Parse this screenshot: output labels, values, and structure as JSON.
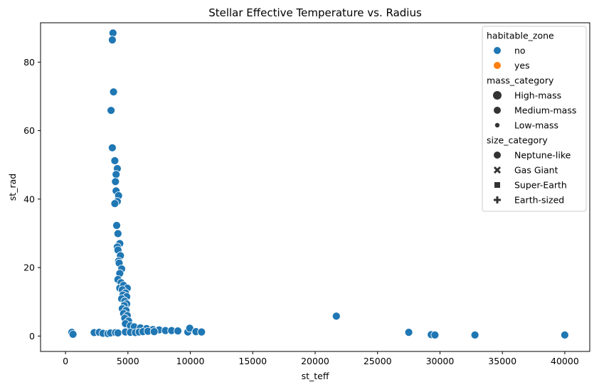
{
  "chart_data": {
    "type": "scatter",
    "title": "Stellar Effective Temperature vs. Radius",
    "xlabel": "st_teff",
    "ylabel": "st_rad",
    "xlim": [
      -2000,
      42000
    ],
    "ylim": [
      -4.5,
      91.5
    ],
    "xticks": [
      "0",
      "5000",
      "10000",
      "15000",
      "20000",
      "25000",
      "30000",
      "35000",
      "40000"
    ],
    "yticks": [
      "0",
      "20",
      "40",
      "60",
      "80"
    ],
    "grid": false,
    "colors": {
      "no": "#1f77b4",
      "yes": "#ff7f0e"
    },
    "legend": {
      "placement": "top-right",
      "sections": [
        {
          "title": "habitable_zone",
          "entries": [
            {
              "label": "no",
              "marker": "circle",
              "color": "#1f77b4",
              "size": "medium"
            },
            {
              "label": "yes",
              "marker": "circle",
              "color": "#ff7f0e",
              "size": "medium"
            }
          ]
        },
        {
          "title": "mass_category",
          "entries": [
            {
              "label": "High-mass",
              "marker": "circle",
              "color": "#333333",
              "size": "large"
            },
            {
              "label": "Medium-mass",
              "marker": "circle",
              "color": "#333333",
              "size": "medium"
            },
            {
              "label": "Low-mass",
              "marker": "circle",
              "color": "#333333",
              "size": "small"
            }
          ]
        },
        {
          "title": "size_category",
          "entries": [
            {
              "label": "Neptune-like",
              "marker": "circle",
              "color": "#333333",
              "size": "medium"
            },
            {
              "label": "Gas Giant",
              "marker": "x",
              "color": "#333333",
              "size": "medium"
            },
            {
              "label": "Super-Earth",
              "marker": "square",
              "color": "#333333",
              "size": "medium"
            },
            {
              "label": "Earth-sized",
              "marker": "plus",
              "color": "#333333",
              "size": "medium"
            }
          ]
        }
      ]
    },
    "series": [
      {
        "habitable_zone": "no",
        "points": [
          [
            3800,
            88.5
          ],
          [
            3750,
            86.5
          ],
          [
            3850,
            71.3
          ],
          [
            3650,
            65.9
          ],
          [
            3750,
            55.0
          ],
          [
            3950,
            51.2
          ],
          [
            4150,
            48.9
          ],
          [
            4050,
            47.2
          ],
          [
            4000,
            45.1
          ],
          [
            4050,
            42.4
          ],
          [
            4250,
            41.0
          ],
          [
            4150,
            39.3
          ],
          [
            3950,
            38.7
          ],
          [
            4100,
            32.3
          ],
          [
            4200,
            29.9
          ],
          [
            4350,
            27.0
          ],
          [
            4150,
            26.0
          ],
          [
            4200,
            25.1
          ],
          [
            4400,
            23.5
          ],
          [
            4250,
            21.9
          ],
          [
            4300,
            21.3
          ],
          [
            4500,
            19.6
          ],
          [
            4350,
            18.3
          ],
          [
            4200,
            16.5
          ],
          [
            4450,
            15.6
          ],
          [
            4350,
            14.0
          ],
          [
            4650,
            14.8
          ],
          [
            4950,
            14.0
          ],
          [
            4550,
            13.5
          ],
          [
            4800,
            12.6
          ],
          [
            4600,
            12.0
          ],
          [
            4900,
            11.5
          ],
          [
            4500,
            10.9
          ],
          [
            4750,
            10.2
          ],
          [
            4900,
            9.4
          ],
          [
            4700,
            8.9
          ],
          [
            4550,
            8.0
          ],
          [
            4850,
            7.5
          ],
          [
            4650,
            6.6
          ],
          [
            4950,
            6.0
          ],
          [
            4750,
            5.2
          ],
          [
            5050,
            4.4
          ],
          [
            4800,
            3.6
          ],
          [
            5200,
            3.0
          ],
          [
            5500,
            2.7
          ],
          [
            6000,
            2.4
          ],
          [
            6500,
            2.2
          ],
          [
            7000,
            1.9
          ],
          [
            7500,
            1.8
          ],
          [
            8000,
            1.6
          ],
          [
            8500,
            1.6
          ],
          [
            9000,
            1.5
          ],
          [
            9800,
            1.2
          ],
          [
            9950,
            2.3
          ],
          [
            10450,
            1.3
          ],
          [
            10900,
            1.2
          ],
          [
            500,
            1.1
          ],
          [
            600,
            0.5
          ],
          [
            2300,
            1.0
          ],
          [
            2700,
            1.1
          ],
          [
            3000,
            0.8
          ],
          [
            3400,
            0.7
          ],
          [
            3600,
            0.9
          ],
          [
            4000,
            1.0
          ],
          [
            4200,
            0.9
          ],
          [
            4800,
            1.2
          ],
          [
            5200,
            1.1
          ],
          [
            5600,
            1.0
          ],
          [
            5900,
            1.2
          ],
          [
            6200,
            1.3
          ],
          [
            6600,
            1.4
          ],
          [
            7100,
            1.3
          ],
          [
            21700,
            5.8
          ],
          [
            27500,
            1.1
          ],
          [
            29300,
            0.4
          ],
          [
            29600,
            0.3
          ],
          [
            32800,
            0.3
          ],
          [
            40000,
            0.3
          ]
        ]
      },
      {
        "habitable_zone": "yes",
        "points": []
      }
    ]
  }
}
